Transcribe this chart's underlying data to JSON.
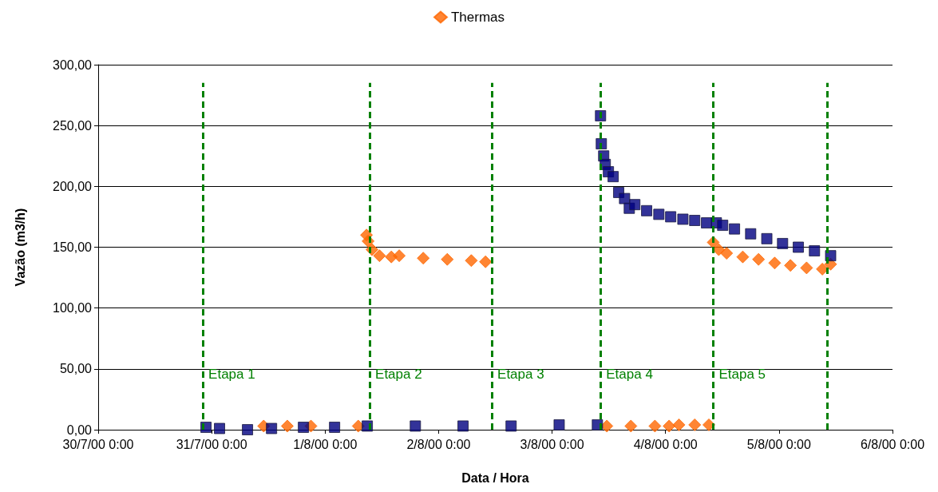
{
  "chart_data": {
    "type": "scatter",
    "xlabel": "Data / Hora",
    "ylabel": "Vazão (m3/h)",
    "xlim": [
      "2000-07-30",
      "2000-08-06"
    ],
    "xticks": [
      {
        "value": "2000-07-30",
        "label": "30/7/00 0:00"
      },
      {
        "value": "2000-07-31",
        "label": "31/7/00 0:00"
      },
      {
        "value": "2000-08-01",
        "label": "1/8/00 0:00"
      },
      {
        "value": "2000-08-02",
        "label": "2/8/00 0:00"
      },
      {
        "value": "2000-08-03",
        "label": "3/8/00 0:00"
      },
      {
        "value": "2000-08-04",
        "label": "4/8/00 0:00"
      },
      {
        "value": "2000-08-05",
        "label": "5/8/00 0:00"
      },
      {
        "value": "2000-08-06",
        "label": "6/8/00 0:00"
      }
    ],
    "ylim": [
      0,
      300
    ],
    "yticks": [
      {
        "value": 0,
        "label": "0,00"
      },
      {
        "value": 50,
        "label": "50,00"
      },
      {
        "value": 100,
        "label": "100,00"
      },
      {
        "value": 150,
        "label": "150,00"
      },
      {
        "value": 200,
        "label": "200,00"
      },
      {
        "value": 250,
        "label": "250,00"
      },
      {
        "value": 300,
        "label": "300,00"
      }
    ],
    "grid": "y",
    "legend": "top",
    "series": [
      {
        "name": "Thermas",
        "color": "#ff6600",
        "marker": "diamond",
        "x": [
          "2000-07-31T11:00",
          "2000-07-31T16:00",
          "2000-07-31T21:00",
          "2000-08-01T07:00",
          "2000-08-01T08:45",
          "2000-08-01T09:05",
          "2000-08-01T09:55",
          "2000-08-01T11:30",
          "2000-08-01T14:00",
          "2000-08-01T15:40",
          "2000-08-01T20:45",
          "2000-08-02T01:50",
          "2000-08-02T06:55",
          "2000-08-02T09:55",
          "2000-08-03T11:35",
          "2000-08-03T16:40",
          "2000-08-03T21:45",
          "2000-08-04T00:45",
          "2000-08-04T02:50",
          "2000-08-04T06:10",
          "2000-08-04T09:10",
          "2000-08-04T10:05",
          "2000-08-04T11:15",
          "2000-08-04T12:55",
          "2000-08-04T16:20",
          "2000-08-04T19:40",
          "2000-08-04T23:05",
          "2000-08-05T02:25",
          "2000-08-05T05:50",
          "2000-08-05T09:10",
          "2000-08-05T10:55"
        ],
        "values": [
          3,
          3,
          3,
          3,
          160,
          155,
          148,
          143,
          142,
          143,
          141,
          140,
          139,
          138,
          3,
          3,
          3,
          3,
          4,
          4,
          4,
          154,
          148,
          145,
          142,
          140,
          137,
          135,
          133,
          132,
          136
        ]
      },
      {
        "color": "#000080",
        "marker": "square",
        "x": [
          "2000-07-30T22:48",
          "2000-07-31T01:40",
          "2000-07-31T07:35",
          "2000-07-31T12:40",
          "2000-07-31T19:25",
          "2000-08-01T02:00",
          "2000-08-01T08:55",
          "2000-08-01T19:05",
          "2000-08-02T05:10",
          "2000-08-02T15:20",
          "2000-08-03T01:30",
          "2000-08-03T09:35",
          "2000-08-03T10:15",
          "2000-08-03T10:25",
          "2000-08-03T10:55",
          "2000-08-03T11:15",
          "2000-08-03T11:55",
          "2000-08-03T12:55",
          "2000-08-03T14:05",
          "2000-08-03T15:20",
          "2000-08-03T16:20",
          "2000-08-03T17:30",
          "2000-08-03T20:00",
          "2000-08-03T22:35",
          "2000-08-04T01:05",
          "2000-08-04T03:40",
          "2000-08-04T06:10",
          "2000-08-04T08:40",
          "2000-08-04T10:45",
          "2000-08-04T12:05",
          "2000-08-04T14:35",
          "2000-08-04T18:00",
          "2000-08-04T21:25",
          "2000-08-05T00:45",
          "2000-08-05T04:05",
          "2000-08-05T07:30",
          "2000-08-05T10:55"
        ],
        "values": [
          2,
          1,
          0,
          1,
          2,
          2,
          3,
          3,
          3,
          3,
          4,
          4,
          258,
          235,
          225,
          218,
          212,
          208,
          195,
          190,
          182,
          185,
          180,
          177,
          175,
          173,
          172,
          170,
          170,
          168,
          165,
          161,
          157,
          153,
          150,
          147,
          143
        ]
      }
    ],
    "ref_lines": [
      {
        "axis": "x",
        "value": "2000-07-30T22:08",
        "label": "Etapa 1",
        "color": "#008000",
        "line_style": "dashed"
      },
      {
        "axis": "x",
        "value": "2000-08-01T09:25",
        "label": "Etapa 2",
        "color": "#008000",
        "line_style": "dashed"
      },
      {
        "axis": "x",
        "value": "2000-08-02T11:15",
        "label": "Etapa 3",
        "color": "#008000",
        "line_style": "dashed"
      },
      {
        "axis": "x",
        "value": "2000-08-03T10:15",
        "label": "Etapa 4",
        "color": "#008000",
        "line_style": "dashed"
      },
      {
        "axis": "x",
        "value": "2000-08-04T10:05",
        "label": "Etapa 5",
        "color": "#008000",
        "line_style": "dashed"
      },
      {
        "axis": "x",
        "value": "2000-08-05T10:10",
        "color": "#008000",
        "line_style": "dashed"
      }
    ]
  }
}
